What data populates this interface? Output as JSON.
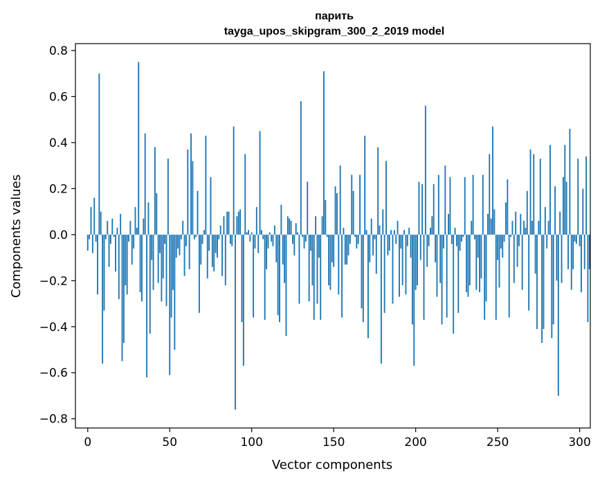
{
  "chart_data": {
    "type": "bar",
    "title": "парить",
    "subtitle": "tayga_upos_skipgram_300_2_2019 model",
    "xlabel": "Vector components",
    "ylabel": "Components values",
    "xlim": [
      -7.5,
      306.5
    ],
    "ylim": [
      -0.84,
      0.83
    ],
    "xticks": [
      0,
      50,
      100,
      150,
      200,
      250,
      300
    ],
    "yticks": [
      -0.8,
      -0.6,
      -0.4,
      -0.2,
      0.0,
      0.2,
      0.4,
      0.6,
      0.8
    ],
    "ytick_labels": [
      "−0.8",
      "−0.6",
      "−0.4",
      "−0.2",
      "0.0",
      "0.2",
      "0.4",
      "0.6",
      "0.8"
    ],
    "bar_color": "#1f77b4",
    "grid": false,
    "values": [
      -0.07,
      -0.02,
      0.12,
      -0.08,
      0.16,
      -0.03,
      -0.26,
      0.7,
      0.1,
      -0.56,
      -0.33,
      -0.02,
      0.06,
      -0.14,
      -0.04,
      0.07,
      -0.01,
      -0.16,
      0.03,
      -0.28,
      0.09,
      -0.55,
      -0.47,
      -0.22,
      -0.26,
      -0.03,
      0.06,
      -0.13,
      -0.06,
      0.12,
      0.03,
      0.75,
      -0.25,
      -0.29,
      0.07,
      0.44,
      -0.62,
      0.14,
      -0.43,
      -0.11,
      -0.24,
      0.38,
      0.18,
      -0.21,
      -0.08,
      -0.29,
      -0.19,
      -0.04,
      -0.31,
      0.33,
      -0.61,
      -0.36,
      -0.24,
      -0.5,
      -0.1,
      -0.06,
      -0.09,
      -0.02,
      0.06,
      -0.18,
      -0.05,
      0.37,
      -0.15,
      0.44,
      0.32,
      -0.02,
      -0.01,
      0.19,
      -0.34,
      -0.13,
      -0.04,
      0.02,
      0.43,
      -0.19,
      -0.07,
      0.25,
      -0.14,
      -0.16,
      -0.08,
      -0.1,
      -0.02,
      0.04,
      -0.18,
      0.08,
      -0.22,
      0.1,
      0.1,
      -0.04,
      -0.05,
      0.47,
      -0.76,
      0.08,
      0.1,
      0.11,
      -0.38,
      -0.57,
      0.35,
      0.01,
      0.02,
      -0.03,
      0.01,
      -0.36,
      -0.06,
      0.12,
      -0.08,
      0.45,
      0.02,
      -0.02,
      -0.37,
      -0.15,
      -0.06,
      0.01,
      -0.03,
      -0.05,
      0.04,
      -0.12,
      -0.35,
      -0.38,
      0.13,
      -0.13,
      -0.21,
      -0.44,
      0.08,
      0.07,
      0.06,
      -0.04,
      -0.09,
      0.05,
      0.01,
      -0.3,
      0.58,
      -0.01,
      -0.06,
      -0.03,
      0.23,
      -0.29,
      -0.07,
      -0.22,
      -0.37,
      0.08,
      -0.3,
      -0.1,
      -0.37,
      0.08,
      0.71,
      0.15,
      -0.01,
      -0.22,
      -0.24,
      -0.12,
      -0.14,
      0.21,
      0.18,
      -0.26,
      0.3,
      -0.36,
      0.03,
      -0.13,
      -0.13,
      -0.09,
      -0.04,
      0.26,
      0.19,
      -0.01,
      -0.06,
      -0.04,
      0.26,
      -0.32,
      -0.38,
      0.43,
      0.02,
      -0.45,
      -0.12,
      0.07,
      -0.09,
      -0.02,
      -0.17,
      0.38,
      0.04,
      -0.56,
      0.11,
      -0.34,
      0.32,
      -0.09,
      -0.07,
      0.02,
      -0.3,
      0.02,
      -0.04,
      0.06,
      -0.27,
      -0.06,
      -0.22,
      0.02,
      -0.26,
      -0.05,
      0.03,
      -0.1,
      -0.39,
      -0.57,
      -0.24,
      -0.22,
      0.23,
      -0.11,
      0.22,
      -0.37,
      0.56,
      -0.14,
      -0.05,
      0.03,
      0.08,
      0.22,
      -0.12,
      -0.27,
      0.26,
      -0.21,
      -0.39,
      -0.06,
      0.3,
      -0.36,
      0.09,
      0.25,
      -0.04,
      -0.43,
      0.03,
      -0.05,
      -0.34,
      -0.07,
      -0.03,
      -0.01,
      0.25,
      -0.25,
      -0.27,
      -0.22,
      0.06,
      0.26,
      -0.02,
      -0.24,
      -0.1,
      -0.25,
      -0.19,
      0.26,
      -0.37,
      -0.29,
      0.09,
      0.35,
      0.07,
      0.47,
      0.11,
      -0.37,
      -0.11,
      -0.23,
      -0.06,
      -0.1,
      -0.03,
      0.14,
      0.24,
      -0.36,
      -0.01,
      0.06,
      -0.21,
      0.1,
      -0.14,
      -0.05,
      0.09,
      -0.24,
      0.06,
      0.03,
      0.19,
      -0.33,
      0.37,
      0.06,
      0.35,
      -0.17,
      -0.41,
      0.06,
      0.33,
      -0.47,
      -0.41,
      0.12,
      -0.06,
      0.06,
      0.39,
      -0.45,
      -0.39,
      0.21,
      -0.2,
      -0.7,
      0.1,
      -0.21,
      0.25,
      0.39,
      0.23,
      -0.15,
      0.46,
      -0.24,
      -0.15,
      -0.03,
      -0.04,
      0.33,
      -0.05,
      -0.25,
      0.2,
      -0.15,
      0.34,
      -0.38,
      -0.15
    ]
  }
}
